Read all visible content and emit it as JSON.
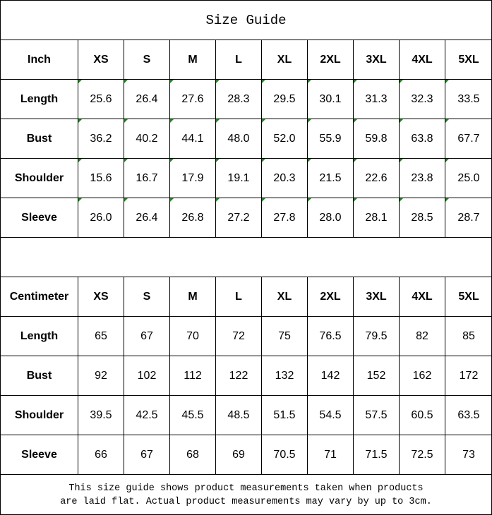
{
  "title": "Size Guide",
  "sizes": [
    "XS",
    "S",
    "M",
    "L",
    "XL",
    "2XL",
    "3XL",
    "4XL",
    "5XL"
  ],
  "inch": {
    "label": "Inch",
    "rows": [
      {
        "label": "Length",
        "values": [
          "25.6",
          "26.4",
          "27.6",
          "28.3",
          "29.5",
          "30.1",
          "31.3",
          "32.3",
          "33.5"
        ]
      },
      {
        "label": "Bust",
        "values": [
          "36.2",
          "40.2",
          "44.1",
          "48.0",
          "52.0",
          "55.9",
          "59.8",
          "63.8",
          "67.7"
        ]
      },
      {
        "label": "Shoulder",
        "values": [
          "15.6",
          "16.7",
          "17.9",
          "19.1",
          "20.3",
          "21.5",
          "22.6",
          "23.8",
          "25.0"
        ]
      },
      {
        "label": "Sleeve",
        "values": [
          "26.0",
          "26.4",
          "26.8",
          "27.2",
          "27.8",
          "28.0",
          "28.1",
          "28.5",
          "28.7"
        ]
      }
    ]
  },
  "cm": {
    "label": "Centimeter",
    "rows": [
      {
        "label": "Length",
        "values": [
          "65",
          "67",
          "70",
          "72",
          "75",
          "76.5",
          "79.5",
          "82",
          "85"
        ]
      },
      {
        "label": "Bust",
        "values": [
          "92",
          "102",
          "112",
          "122",
          "132",
          "142",
          "152",
          "162",
          "172"
        ]
      },
      {
        "label": "Shoulder",
        "values": [
          "39.5",
          "42.5",
          "45.5",
          "48.5",
          "51.5",
          "54.5",
          "57.5",
          "60.5",
          "63.5"
        ]
      },
      {
        "label": "Sleeve",
        "values": [
          "66",
          "67",
          "68",
          "69",
          "70.5",
          "71",
          "71.5",
          "72.5",
          "73"
        ]
      }
    ]
  },
  "footer": {
    "line1": "This size guide shows product measurements taken when products",
    "line2": "are laid flat. Actual product measurements may vary by up to 3cm."
  },
  "colors": {
    "text_marker": "#1a8a1a"
  }
}
